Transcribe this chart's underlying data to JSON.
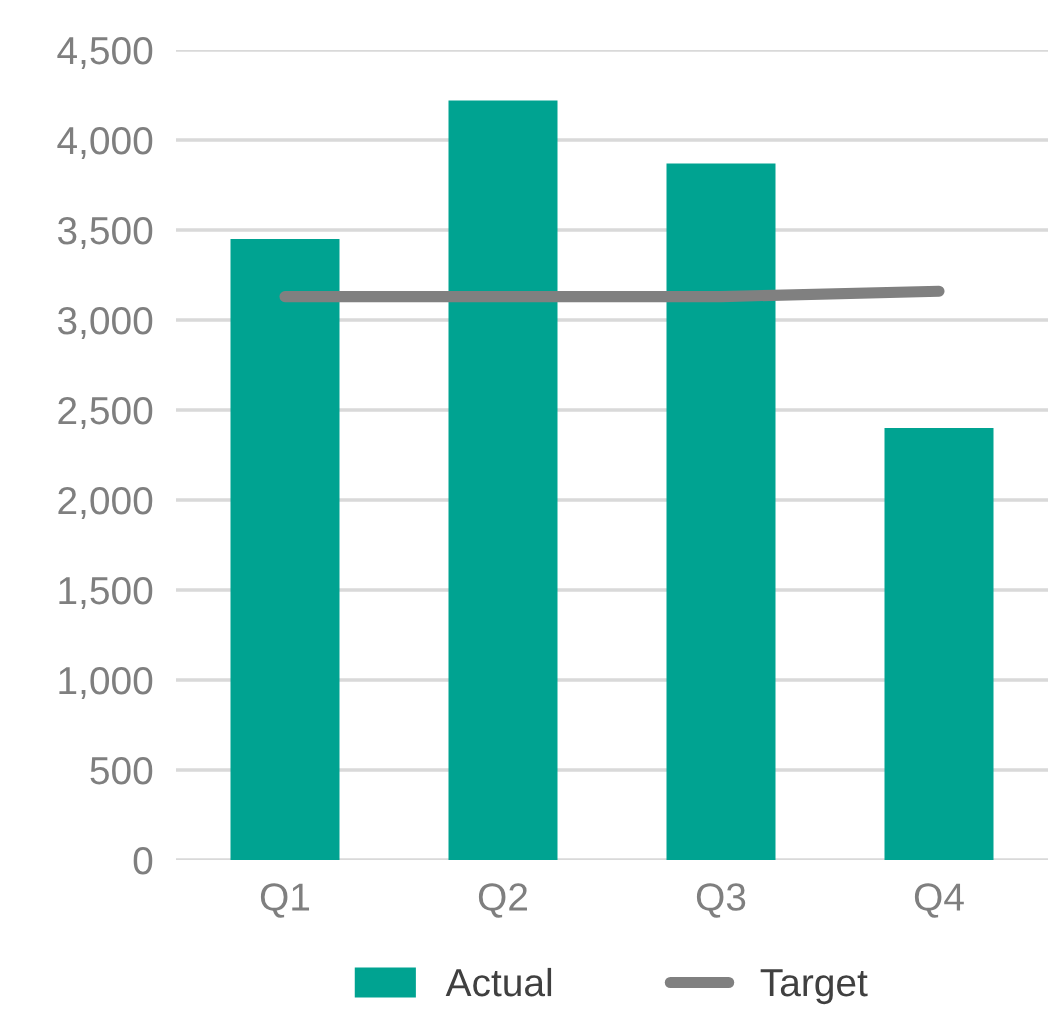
{
  "chart_data": {
    "type": "bar",
    "categories": [
      "Q1",
      "Q2",
      "Q3",
      "Q4"
    ],
    "series": [
      {
        "name": "Actual",
        "color": "#00a391",
        "values": [
          3450,
          4220,
          3870,
          2400
        ]
      },
      {
        "name": "Target",
        "type": "line",
        "color": "#808080",
        "values": [
          3130,
          3130,
          3130,
          3160
        ]
      }
    ],
    "ylim": [
      0,
      4500
    ],
    "yticks": [
      {
        "value": 0,
        "label": "0"
      },
      {
        "value": 500,
        "label": "500"
      },
      {
        "value": 1000,
        "label": "1,000"
      },
      {
        "value": 1500,
        "label": "1,500"
      },
      {
        "value": 2000,
        "label": "2,000"
      },
      {
        "value": 2500,
        "label": "2,500"
      },
      {
        "value": 3000,
        "label": "3,000"
      },
      {
        "value": 3500,
        "label": "3,500"
      },
      {
        "value": 4000,
        "label": "4,000"
      },
      {
        "value": 4500,
        "label": "4,500"
      }
    ],
    "grid": "y",
    "legend": "bottom",
    "marker": "none",
    "line_style": "solid"
  }
}
